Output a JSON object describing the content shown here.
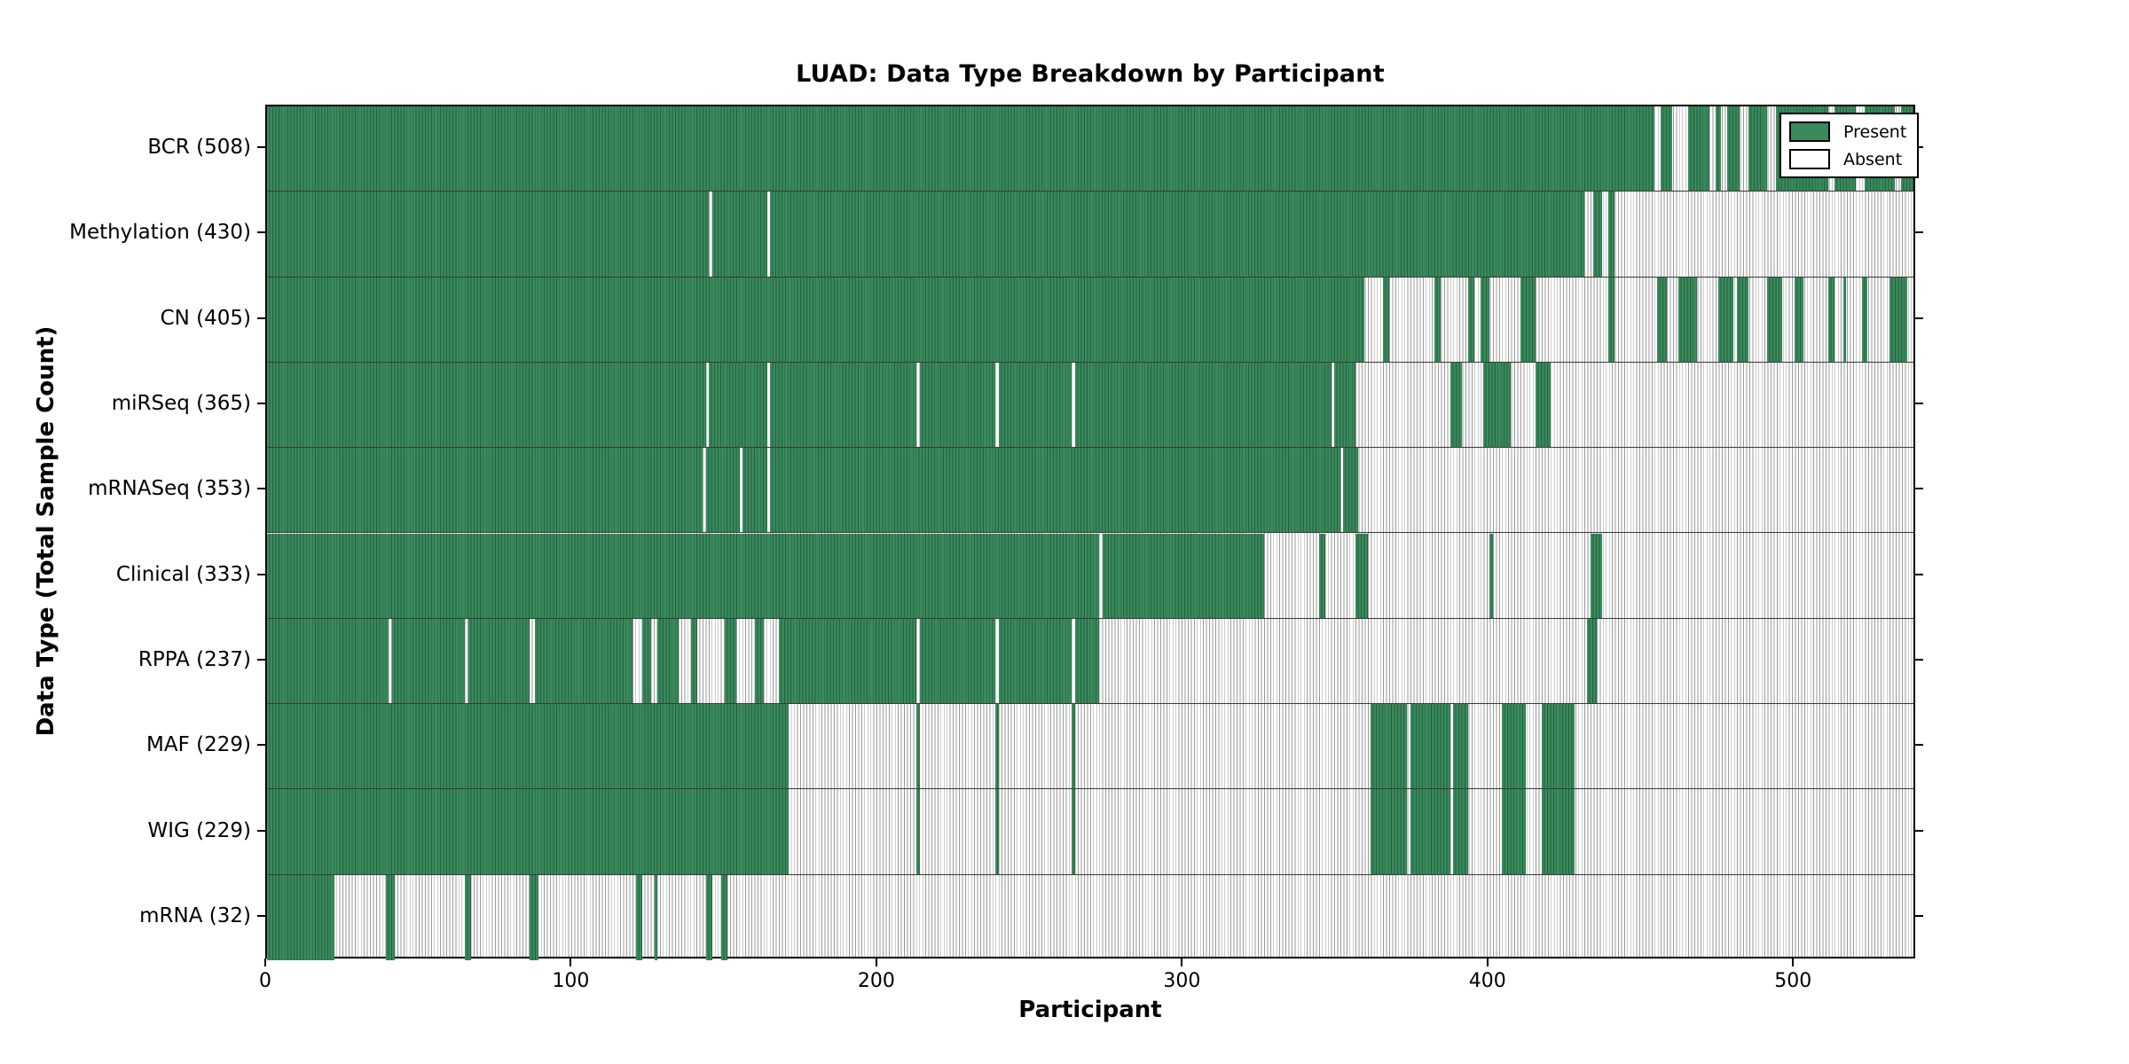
{
  "chart_data": {
    "type": "heatmap",
    "title": "LUAD: Data Type Breakdown by Participant",
    "xlabel": "Participant",
    "ylabel": "Data Type (Total Sample Count)",
    "xlim": [
      0,
      540
    ],
    "x_ticks": [
      0,
      100,
      200,
      300,
      400,
      500
    ],
    "grid": false,
    "legend_position": "upper right",
    "legend": [
      {
        "label": "Present",
        "color": "#3a8a5c"
      },
      {
        "label": "Absent",
        "color": "#ffffff"
      }
    ],
    "colors": {
      "present": "#3a8a5c",
      "absent": "#ffffff",
      "absent_line": "#9a9a9a",
      "border": "#000000"
    },
    "rows": [
      {
        "label": "BCR (508)",
        "key": "bcr",
        "count": 508,
        "present_runs": [
          [
            0,
            455
          ],
          [
            457,
            461
          ],
          [
            466,
            473
          ],
          [
            475,
            477
          ],
          [
            479,
            483
          ],
          [
            486,
            492
          ],
          [
            495,
            512
          ],
          [
            514,
            521
          ],
          [
            524,
            534
          ],
          [
            536,
            540
          ]
        ]
      },
      {
        "label": "Methylation (430)",
        "key": "methylation",
        "count": 430,
        "present_runs": [
          [
            0,
            145
          ],
          [
            146,
            164
          ],
          [
            165,
            432
          ],
          [
            435,
            438
          ],
          [
            440,
            442
          ]
        ]
      },
      {
        "label": "CN (405)",
        "key": "cn",
        "count": 405,
        "present_runs": [
          [
            0,
            360
          ],
          [
            366,
            368
          ],
          [
            383,
            385
          ],
          [
            394,
            396
          ],
          [
            398,
            401
          ],
          [
            411,
            416
          ],
          [
            440,
            442
          ],
          [
            456,
            459
          ],
          [
            463,
            469
          ],
          [
            476,
            481
          ],
          [
            482,
            486
          ],
          [
            492,
            497
          ],
          [
            501,
            504
          ],
          [
            512,
            514
          ],
          [
            517,
            518
          ],
          [
            523,
            525
          ],
          [
            532,
            538
          ]
        ]
      },
      {
        "label": "miRSeq (365)",
        "key": "mirseq",
        "count": 365,
        "present_runs": [
          [
            0,
            144
          ],
          [
            145,
            164
          ],
          [
            165,
            213
          ],
          [
            214,
            239
          ],
          [
            240,
            264
          ],
          [
            265,
            349
          ],
          [
            350,
            357
          ],
          [
            388,
            392
          ],
          [
            399,
            408
          ],
          [
            416,
            421
          ]
        ]
      },
      {
        "label": "mRNASeq (353)",
        "key": "mrnaseq",
        "count": 353,
        "present_runs": [
          [
            0,
            143
          ],
          [
            144,
            155
          ],
          [
            156,
            164
          ],
          [
            165,
            352
          ],
          [
            353,
            358
          ]
        ]
      },
      {
        "label": "Clinical (333)",
        "key": "clinical",
        "count": 333,
        "present_runs": [
          [
            0,
            273
          ],
          [
            274,
            327
          ],
          [
            345,
            347
          ],
          [
            357,
            361
          ],
          [
            401,
            402
          ],
          [
            434,
            438
          ]
        ]
      },
      {
        "label": "RPPA (237)",
        "key": "rppa",
        "count": 237,
        "present_runs": [
          [
            0,
            40
          ],
          [
            41,
            65
          ],
          [
            66,
            86
          ],
          [
            88,
            120
          ],
          [
            123,
            126
          ],
          [
            128,
            135
          ],
          [
            139,
            141
          ],
          [
            150,
            154
          ],
          [
            160,
            163
          ],
          [
            168,
            213
          ],
          [
            214,
            239
          ],
          [
            240,
            264
          ],
          [
            265,
            273
          ],
          [
            433,
            436
          ]
        ]
      },
      {
        "label": "MAF (229)",
        "key": "maf",
        "count": 229,
        "present_runs": [
          [
            0,
            171
          ],
          [
            213,
            214
          ],
          [
            239,
            240
          ],
          [
            264,
            265
          ],
          [
            362,
            374
          ],
          [
            375,
            388
          ],
          [
            389,
            394
          ],
          [
            405,
            413
          ],
          [
            418,
            429
          ]
        ]
      },
      {
        "label": "WIG (229)",
        "key": "wig",
        "count": 229,
        "present_runs": [
          [
            0,
            171
          ],
          [
            213,
            214
          ],
          [
            239,
            240
          ],
          [
            264,
            265
          ],
          [
            362,
            374
          ],
          [
            375,
            388
          ],
          [
            389,
            394
          ],
          [
            405,
            413
          ],
          [
            418,
            429
          ]
        ]
      },
      {
        "label": "mRNA (32)",
        "key": "mrna",
        "count": 32,
        "present_runs": [
          [
            0,
            22
          ],
          [
            39,
            42
          ],
          [
            65,
            67
          ],
          [
            86,
            89
          ],
          [
            121,
            123
          ],
          [
            127,
            128
          ],
          [
            144,
            146
          ],
          [
            149,
            151
          ]
        ]
      }
    ]
  }
}
